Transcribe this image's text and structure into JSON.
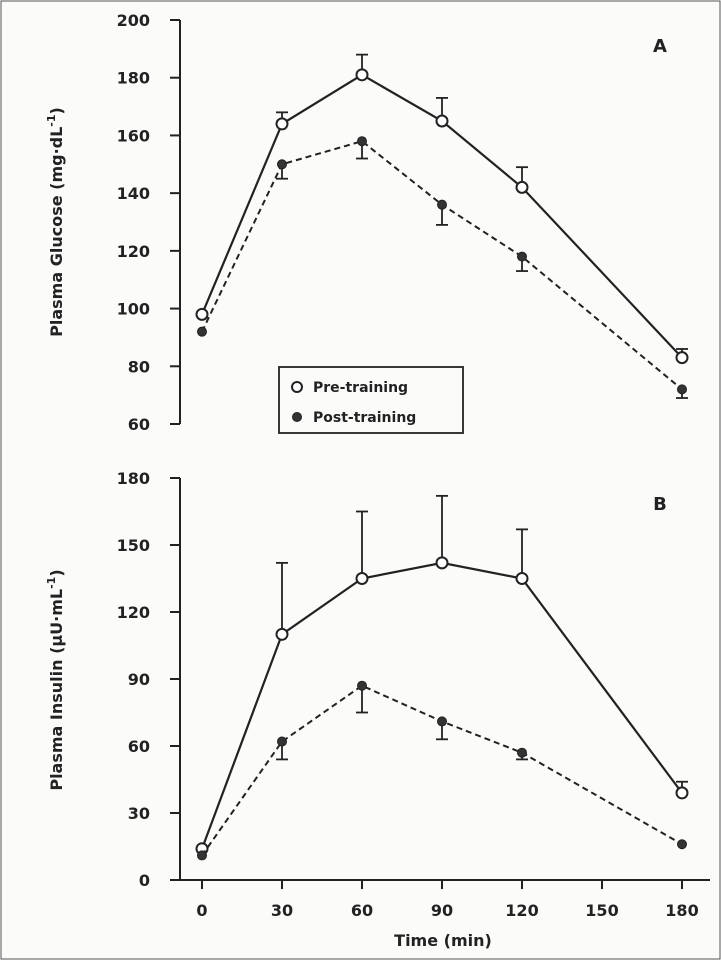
{
  "chart_data": [
    {
      "type": "line",
      "panel_label": "A",
      "ylabel": "Plasma Glucose (mg·dL⁻¹)",
      "ylabel_main": "Plasma Glucose (mg·dL",
      "ylabel_sup": "-1",
      "ylabel_close": ")",
      "ylim": [
        60,
        200
      ],
      "yticks": [
        "60",
        "80",
        "100",
        "120",
        "140",
        "160",
        "180",
        "200"
      ],
      "ytick_values": [
        60,
        80,
        100,
        120,
        140,
        160,
        180,
        200
      ],
      "xlim": [
        0,
        180
      ],
      "x": [
        0,
        30,
        60,
        90,
        120,
        180
      ],
      "series": [
        {
          "name": "Pre-training",
          "marker": "open-circle",
          "line": "solid",
          "values": [
            98,
            164,
            181,
            165,
            142,
            83
          ],
          "errors": [
            0,
            4,
            7,
            8,
            7,
            3
          ]
        },
        {
          "name": "Post-training",
          "marker": "filled-circle",
          "line": "dashed",
          "values": [
            92,
            150,
            158,
            136,
            118,
            72
          ],
          "errors": [
            0,
            5,
            6,
            7,
            5,
            3
          ]
        }
      ],
      "legend": {
        "placement": "bottom-center",
        "entries": [
          "Pre-training",
          "Post-training"
        ]
      }
    },
    {
      "type": "line",
      "panel_label": "B",
      "ylabel": "Plasma Insulin (µU·mL⁻¹)",
      "ylabel_main": "Plasma Insulin (µU·mL",
      "ylabel_sup": "-1",
      "ylabel_close": ")",
      "ylim": [
        0,
        180
      ],
      "yticks": [
        "0",
        "30",
        "60",
        "90",
        "120",
        "150",
        "180"
      ],
      "ytick_values": [
        0,
        30,
        60,
        90,
        120,
        150,
        180
      ],
      "xlabel": "Time (min)",
      "xlim": [
        0,
        180
      ],
      "xticks": [
        "0",
        "30",
        "60",
        "90",
        "120",
        "150",
        "180"
      ],
      "xtick_values": [
        0,
        30,
        60,
        90,
        120,
        150,
        180
      ],
      "x": [
        0,
        30,
        60,
        90,
        120,
        180
      ],
      "series": [
        {
          "name": "Pre-training",
          "marker": "open-circle",
          "line": "solid",
          "values": [
            14,
            110,
            135,
            142,
            135,
            39
          ],
          "errors": [
            0,
            32,
            30,
            30,
            22,
            5
          ]
        },
        {
          "name": "Post-training",
          "marker": "filled-circle",
          "line": "dashed",
          "values": [
            11,
            62,
            87,
            71,
            57,
            16
          ],
          "errors": [
            0,
            8,
            12,
            8,
            3,
            0
          ]
        }
      ]
    }
  ]
}
